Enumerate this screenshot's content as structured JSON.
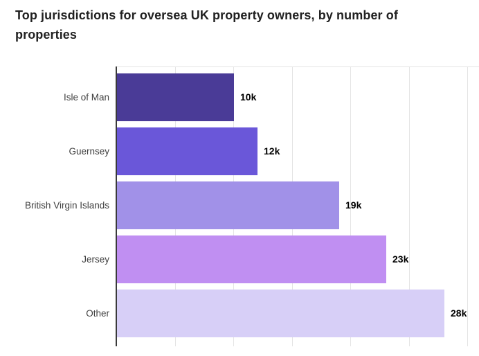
{
  "title": "Top jurisdictions for oversea UK property owners, by number of properties",
  "chart_data": {
    "type": "bar",
    "orientation": "horizontal",
    "title": "Top jurisdictions for oversea UK property owners, by number of properties",
    "xlabel": "",
    "ylabel": "",
    "categories": [
      "Isle of Man",
      "Guernsey",
      "British Virgin Islands",
      "Jersey",
      "Other"
    ],
    "values": [
      10000,
      12000,
      19000,
      23000,
      28000
    ],
    "value_labels": [
      "10k",
      "12k",
      "19k",
      "23k",
      "28k"
    ],
    "bar_colors": [
      "#4a3b97",
      "#6a57d9",
      "#a191e8",
      "#c08ff2",
      "#d7cff7"
    ],
    "xlim": [
      0,
      31000
    ],
    "gridline_values": [
      5000,
      10000,
      15000,
      20000,
      25000,
      30000
    ],
    "grid": true,
    "legend": false,
    "axis_color": "#3a3a3a",
    "gridline_color": "#e4e4e4",
    "title_color": "#212121",
    "category_label_color": "#3f3f3f",
    "value_label_color": "#000000",
    "background_color": "#ffffff"
  }
}
